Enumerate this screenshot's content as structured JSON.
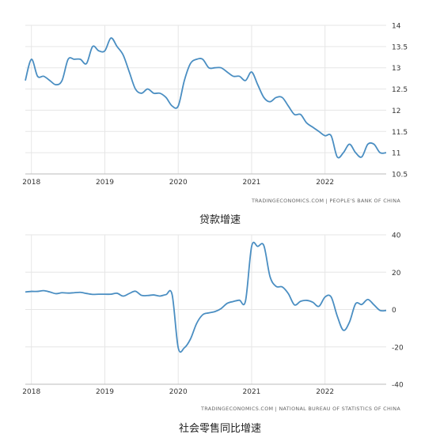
{
  "captions": [
    "贷款增速",
    "社会零售同比增速"
  ],
  "colors": {
    "line": "#4a8ec2",
    "grid": "#e6e6e6",
    "tick": "#333333",
    "source": "#666666"
  },
  "chart_data": [
    {
      "type": "line",
      "title": "贷款增速",
      "source": "TRADINGECONOMICS.COM | PEOPLE'S BANK OF CHINA",
      "x_ticks": [
        "2018",
        "2019",
        "2020",
        "2021",
        "2022"
      ],
      "y_ticks": [
        "10.5",
        "11",
        "11.5",
        "12",
        "12.5",
        "13",
        "13.5",
        "14"
      ],
      "ylim": [
        10.5,
        14
      ],
      "xlim": [
        "2017-12",
        "2022-11"
      ],
      "grid": "vertical and horizontal",
      "y_axis_side": "right",
      "series": [
        {
          "x": [
            "2017-12",
            "2018-01",
            "2018-02",
            "2018-03",
            "2018-04",
            "2018-05",
            "2018-06",
            "2018-07",
            "2018-08",
            "2018-09",
            "2018-10",
            "2018-11",
            "2018-12",
            "2019-01",
            "2019-02",
            "2019-03",
            "2019-04",
            "2019-05",
            "2019-06",
            "2019-07",
            "2019-08",
            "2019-09",
            "2019-10",
            "2019-11",
            "2019-12",
            "2020-01",
            "2020-02",
            "2020-03",
            "2020-04",
            "2020-05",
            "2020-06",
            "2020-07",
            "2020-08",
            "2020-09",
            "2020-10",
            "2020-11",
            "2020-12",
            "2021-01",
            "2021-02",
            "2021-03",
            "2021-04",
            "2021-05",
            "2021-06",
            "2021-07",
            "2021-08",
            "2021-09",
            "2021-10",
            "2021-11",
            "2021-12",
            "2022-01",
            "2022-02",
            "2022-03",
            "2022-04",
            "2022-05",
            "2022-06",
            "2022-07",
            "2022-08",
            "2022-09",
            "2022-10",
            "2022-11"
          ],
          "values": [
            12.7,
            13.2,
            12.8,
            12.8,
            12.7,
            12.6,
            12.7,
            13.2,
            13.2,
            13.2,
            13.1,
            13.5,
            13.4,
            13.4,
            13.7,
            13.5,
            13.3,
            12.9,
            12.5,
            12.4,
            12.5,
            12.4,
            12.4,
            12.3,
            12.1,
            12.1,
            12.7,
            13.1,
            13.2,
            13.2,
            13.0,
            13.0,
            13.0,
            12.9,
            12.8,
            12.8,
            12.7,
            12.9,
            12.6,
            12.3,
            12.2,
            12.3,
            12.3,
            12.1,
            11.9,
            11.9,
            11.7,
            11.6,
            11.5,
            11.4,
            11.4,
            10.9,
            11.0,
            11.2,
            11.0,
            10.9,
            11.2,
            11.2,
            11.0,
            11.0
          ]
        }
      ]
    },
    {
      "type": "line",
      "title": "社会零售同比增速",
      "source": "TRADINGECONOMICS.COM | NATIONAL BUREAU OF STATISTICS OF CHINA",
      "x_ticks": [
        "2018",
        "2019",
        "2020",
        "2021",
        "2022"
      ],
      "y_ticks": [
        "-40",
        "-20",
        "0",
        "20",
        "40"
      ],
      "ylim": [
        -40,
        40
      ],
      "xlim": [
        "2017-12",
        "2022-11"
      ],
      "grid": "vertical and horizontal",
      "y_axis_side": "right",
      "series": [
        {
          "x": [
            "2017-12",
            "2018-01",
            "2018-02",
            "2018-03",
            "2018-04",
            "2018-05",
            "2018-06",
            "2018-07",
            "2018-08",
            "2018-09",
            "2018-10",
            "2018-11",
            "2018-12",
            "2019-01",
            "2019-02",
            "2019-03",
            "2019-04",
            "2019-05",
            "2019-06",
            "2019-07",
            "2019-08",
            "2019-09",
            "2019-10",
            "2019-11",
            "2019-12",
            "2020-01",
            "2020-02",
            "2020-03",
            "2020-04",
            "2020-05",
            "2020-06",
            "2020-07",
            "2020-08",
            "2020-09",
            "2020-10",
            "2020-11",
            "2020-12",
            "2021-01",
            "2021-02",
            "2021-03",
            "2021-04",
            "2021-05",
            "2021-06",
            "2021-07",
            "2021-08",
            "2021-09",
            "2021-10",
            "2021-11",
            "2021-12",
            "2022-01",
            "2022-02",
            "2022-03",
            "2022-04",
            "2022-05",
            "2022-06",
            "2022-07",
            "2022-08",
            "2022-09",
            "2022-10",
            "2022-11"
          ],
          "values": [
            9.4,
            9.7,
            9.7,
            10.1,
            9.4,
            8.5,
            9.0,
            8.8,
            9.0,
            9.2,
            8.6,
            8.1,
            8.2,
            8.2,
            8.2,
            8.7,
            7.2,
            8.6,
            9.8,
            7.6,
            7.5,
            7.8,
            7.2,
            8.0,
            8.0,
            -20.5,
            -20.5,
            -15.8,
            -7.5,
            -2.8,
            -1.8,
            -1.1,
            0.5,
            3.3,
            4.3,
            5.0,
            4.6,
            33.8,
            33.8,
            34.2,
            17.7,
            12.4,
            12.1,
            8.5,
            2.5,
            4.4,
            4.9,
            3.9,
            1.7,
            6.7,
            6.7,
            -3.5,
            -11.1,
            -6.7,
            3.1,
            2.7,
            5.4,
            2.5,
            -0.5,
            -0.5
          ]
        }
      ]
    }
  ]
}
